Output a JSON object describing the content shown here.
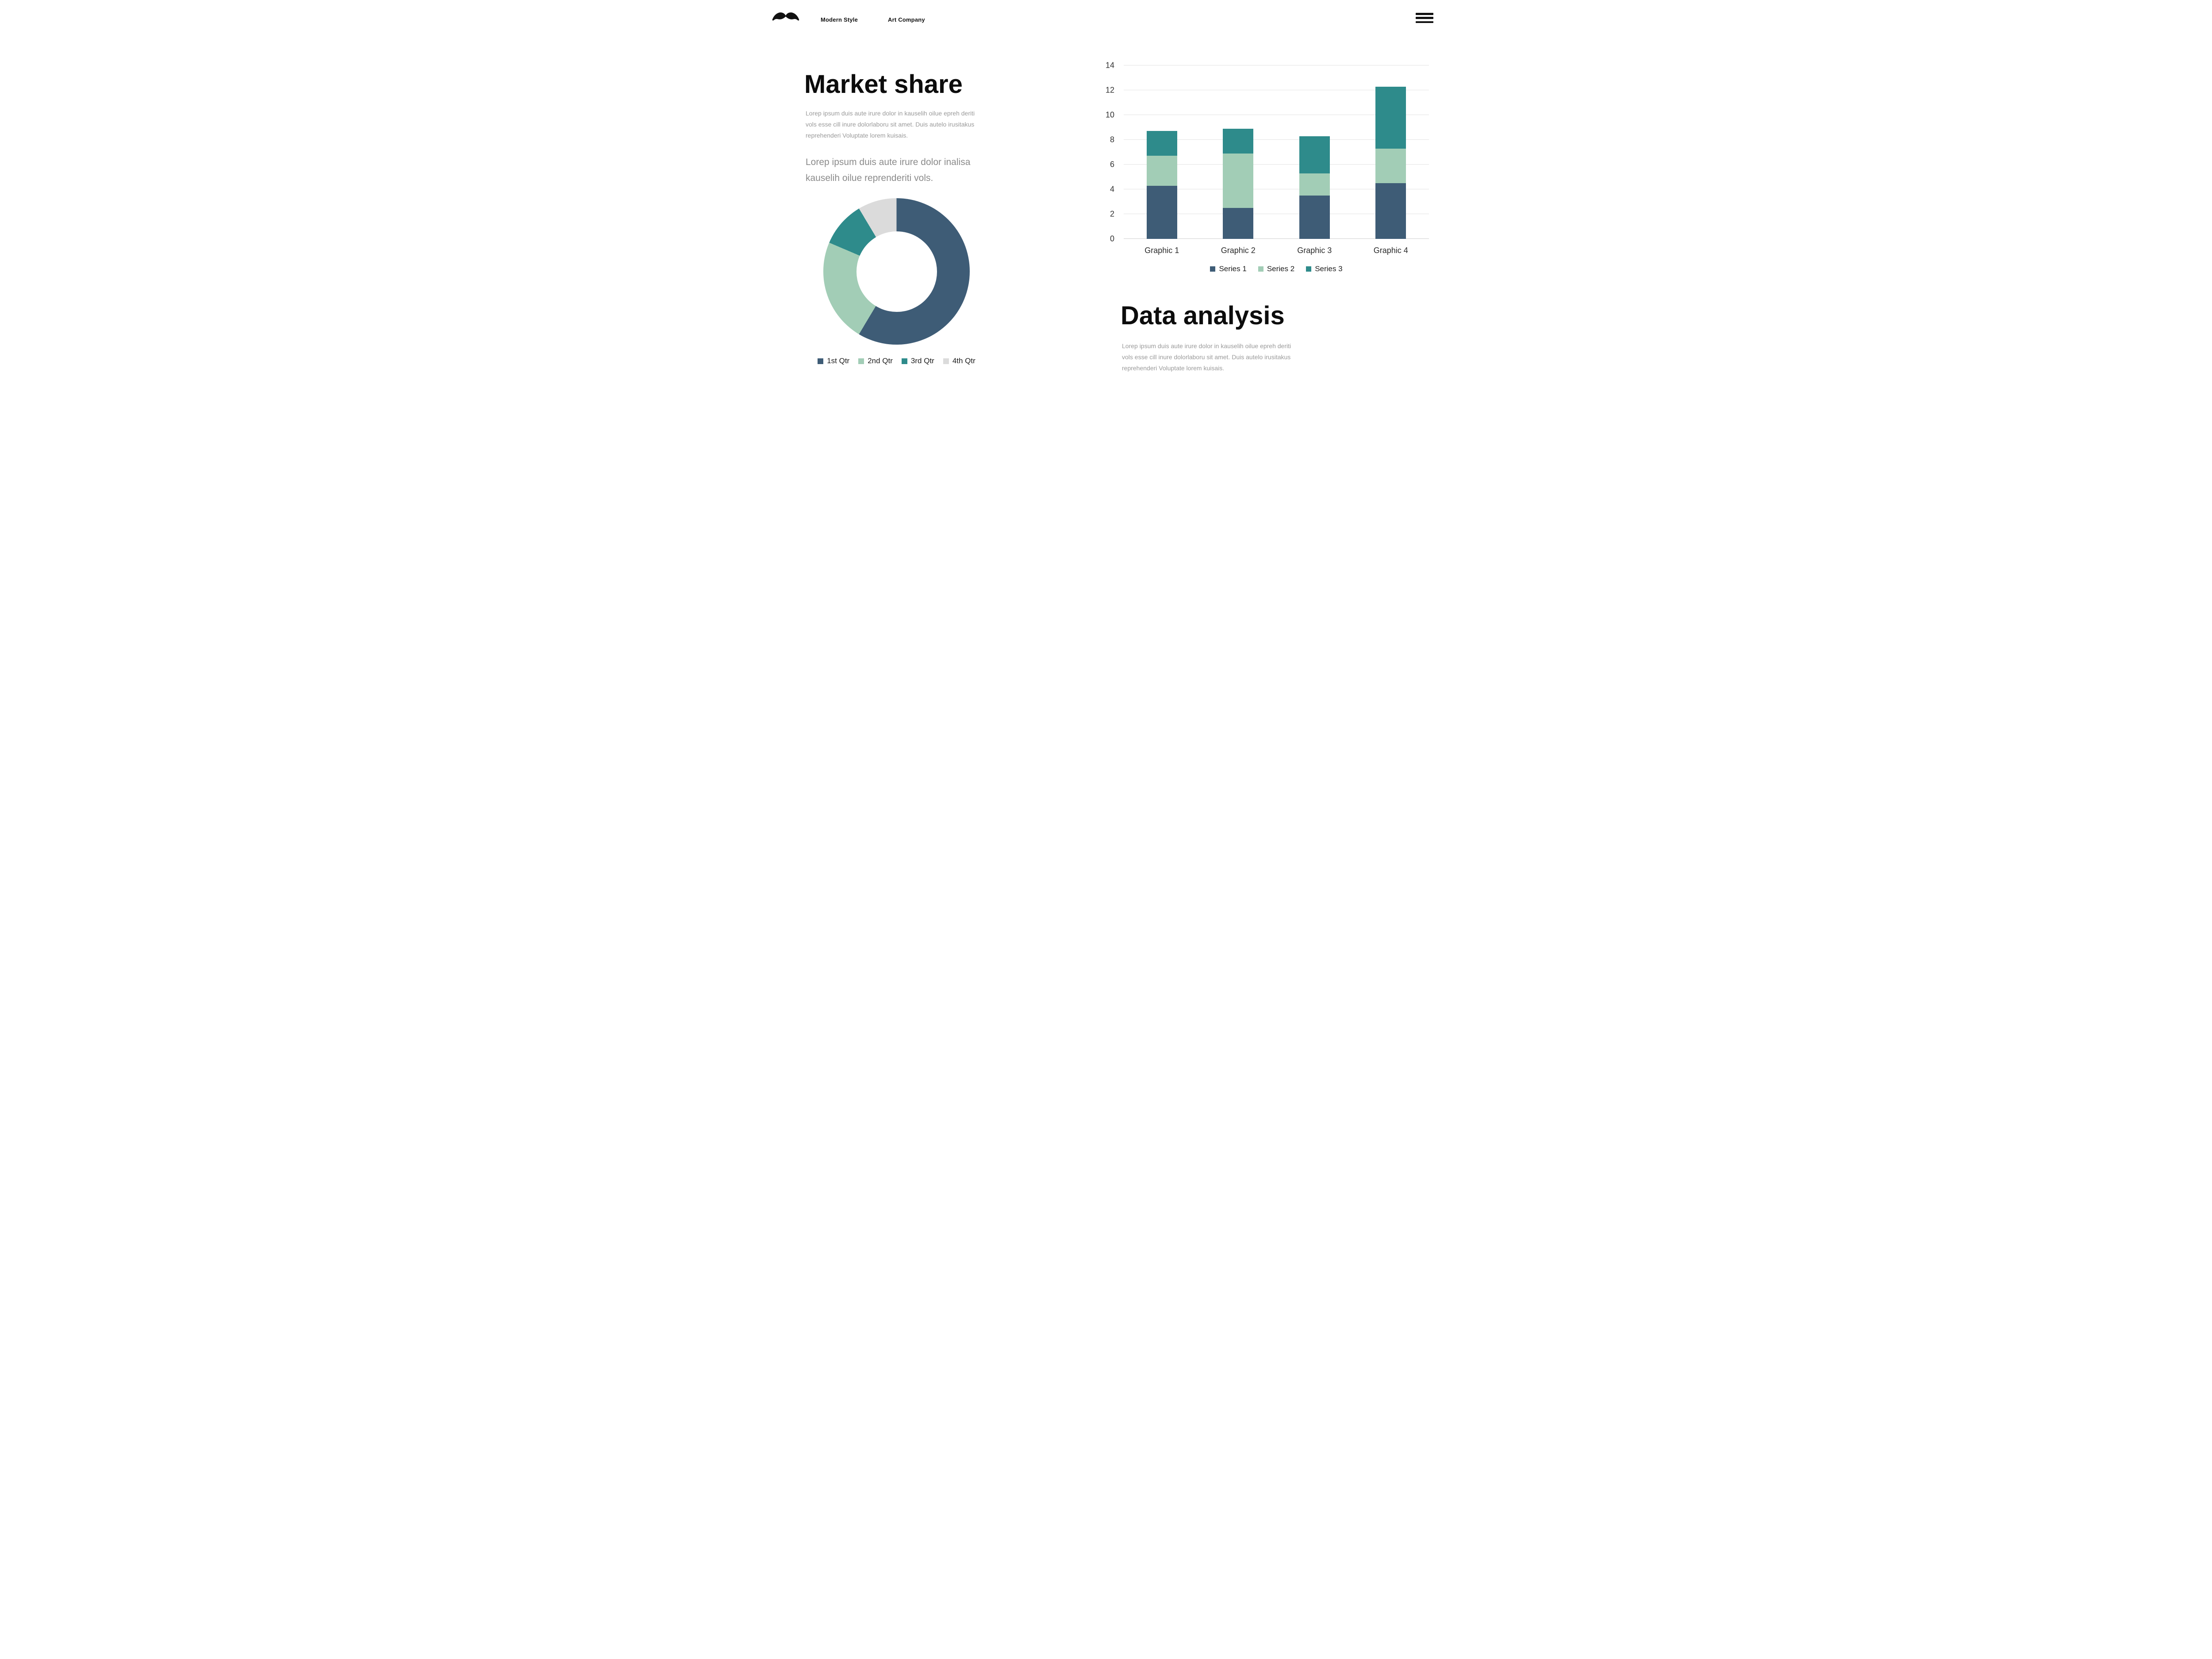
{
  "header": {
    "logo_icon": "mustache-icon",
    "brand_primary": "Modern Style",
    "brand_secondary": "Art Company",
    "menu_icon": "hamburger-icon"
  },
  "left_section": {
    "title": "Market share",
    "paragraph_small": "Lorep  ipsum duis aute irure dolor in kauselih oilue epreh deriti vols esse cill inure dolorlaboru sit amet. Duis autelo irusitakus reprehenderi Voluptate lorem kuisais.",
    "paragraph_large": "Lorep  ipsum duis aute irure dolor inalisa kauselih oilue reprenderiti vols."
  },
  "right_section": {
    "title": "Data analysis",
    "paragraph": "Lorep  ipsum duis aute irure dolor in kauselih oilue epreh deriti vols esse cill inure dolorlaboru sit amet. Duis autelo irusitakus reprehenderi Voluptate lorem kuisais."
  },
  "theme": {
    "background": "#ffffff",
    "text_dark": "#0c0c0c",
    "text_gray": "#9a9a9a",
    "dark_blue": "#3E5C76",
    "light_green": "#A2CDB6",
    "teal": "#2E8B8B",
    "light_gray": "#DBDBDB"
  },
  "chart_data": [
    {
      "type": "pie",
      "subtype": "donut",
      "title": "",
      "labels": [
        "1st Qtr",
        "2nd Qtr",
        "3rd Qtr",
        "4th Qtr"
      ],
      "values": [
        8.2,
        3.2,
        1.4,
        1.2
      ],
      "colors": [
        "#3E5C76",
        "#A2CDB6",
        "#2E8B8B",
        "#DBDBDB"
      ],
      "legend_position": "bottom",
      "start_angle": 0,
      "direction": "clockwise"
    },
    {
      "type": "bar",
      "stacked": true,
      "title": "",
      "categories": [
        "Graphic 1",
        "Graphic 2",
        "Graphic 3",
        "Graphic 4"
      ],
      "series": [
        {
          "name": "Series 1",
          "color": "#3E5C76",
          "values": [
            4.3,
            2.5,
            3.5,
            4.5
          ]
        },
        {
          "name": "Series 2",
          "color": "#A2CDB6",
          "values": [
            2.4,
            4.4,
            1.8,
            2.8
          ]
        },
        {
          "name": "Series 3",
          "color": "#2E8B8B",
          "values": [
            2.0,
            2.0,
            3.0,
            5.0
          ]
        }
      ],
      "stack_totals": [
        8.7,
        8.9,
        8.3,
        12.3
      ],
      "ylim": [
        0,
        14
      ],
      "yticks": [
        0,
        2,
        4,
        6,
        8,
        10,
        12,
        14
      ],
      "grid": true,
      "legend_position": "bottom"
    }
  ]
}
